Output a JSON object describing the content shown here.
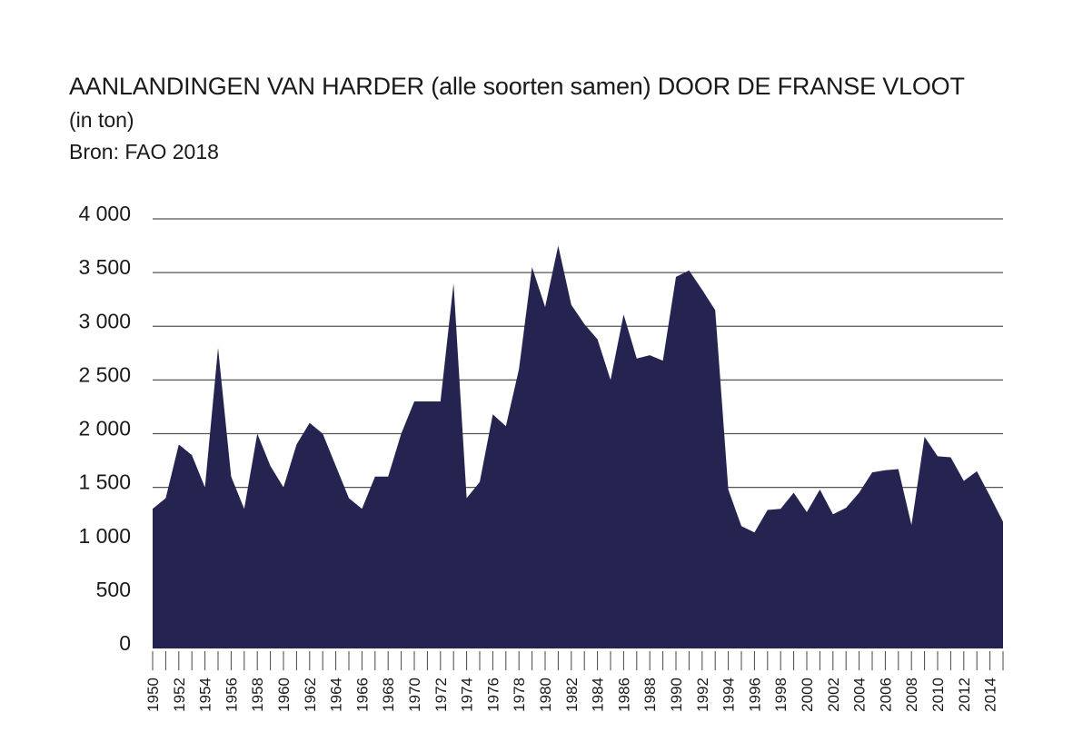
{
  "chart_data": {
    "type": "area",
    "title": "AANLANDINGEN VAN HARDER (alle soorten samen) DOOR DE FRANSE VLOOT",
    "subtitle": "(in ton)",
    "source": "Bron: FAO 2018",
    "xlabel": "",
    "ylabel": "",
    "ylim": [
      0,
      4000
    ],
    "grid": true,
    "fill_color": "#252451",
    "y_ticks": [
      0,
      500,
      1000,
      1500,
      2000,
      2500,
      3000,
      3500,
      4000
    ],
    "y_tick_labels": [
      "0",
      "500",
      "1 000",
      "1 500",
      "2 000",
      "2 500",
      "3 000",
      "3 500",
      "4 000"
    ],
    "x_tick_labels": [
      "1950",
      "1952",
      "1954",
      "1956",
      "1958",
      "1960",
      "1962",
      "1964",
      "1966",
      "1968",
      "1970",
      "1972",
      "1974",
      "1976",
      "1978",
      "1980",
      "1982",
      "1984",
      "1986",
      "1988",
      "1990",
      "1992",
      "1994",
      "1996",
      "1998",
      "2000",
      "2002",
      "2004",
      "2006",
      "2008",
      "2010",
      "2012",
      "2014"
    ],
    "x": [
      1950,
      1951,
      1952,
      1953,
      1954,
      1955,
      1956,
      1957,
      1958,
      1959,
      1960,
      1961,
      1962,
      1963,
      1964,
      1965,
      1966,
      1967,
      1968,
      1969,
      1970,
      1971,
      1972,
      1973,
      1974,
      1975,
      1976,
      1977,
      1978,
      1979,
      1980,
      1981,
      1982,
      1983,
      1984,
      1985,
      1986,
      1987,
      1988,
      1989,
      1990,
      1991,
      1992,
      1993,
      1994,
      1995,
      1996,
      1997,
      1998,
      1999,
      2000,
      2001,
      2002,
      2003,
      2004,
      2005,
      2006,
      2007,
      2008,
      2009,
      2010,
      2011,
      2012,
      2013,
      2014,
      2015
    ],
    "values": [
      1300,
      1400,
      1900,
      1800,
      1500,
      2800,
      1600,
      1300,
      2000,
      1700,
      1500,
      1900,
      2100,
      2000,
      1700,
      1400,
      1300,
      1600,
      1600,
      2000,
      2300,
      2300,
      2300,
      3400,
      1400,
      1550,
      2180,
      2070,
      2600,
      3550,
      3180,
      3750,
      3200,
      3020,
      2880,
      2500,
      3110,
      2700,
      2730,
      2680,
      3460,
      3520,
      3340,
      3150,
      1480,
      1140,
      1080,
      1290,
      1300,
      1450,
      1270,
      1480,
      1250,
      1310,
      1450,
      1640,
      1660,
      1670,
      1150,
      1970,
      1790,
      1780,
      1560,
      1650,
      1420,
      1180
    ]
  }
}
